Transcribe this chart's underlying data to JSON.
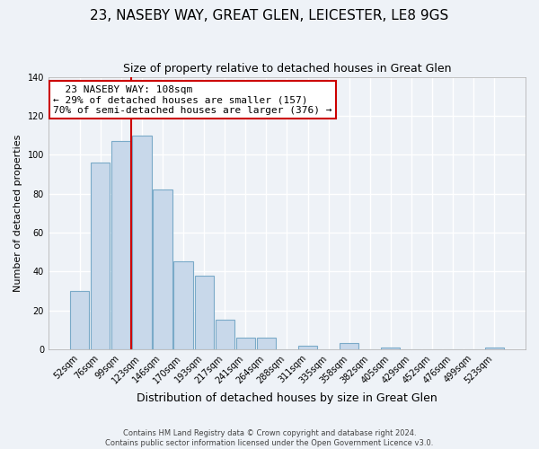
{
  "title": "23, NASEBY WAY, GREAT GLEN, LEICESTER, LE8 9GS",
  "subtitle": "Size of property relative to detached houses in Great Glen",
  "xlabel": "Distribution of detached houses by size in Great Glen",
  "ylabel": "Number of detached properties",
  "bar_labels": [
    "52sqm",
    "76sqm",
    "99sqm",
    "123sqm",
    "146sqm",
    "170sqm",
    "193sqm",
    "217sqm",
    "241sqm",
    "264sqm",
    "288sqm",
    "311sqm",
    "335sqm",
    "358sqm",
    "382sqm",
    "405sqm",
    "429sqm",
    "452sqm",
    "476sqm",
    "499sqm",
    "523sqm"
  ],
  "bar_values": [
    30,
    96,
    107,
    110,
    82,
    45,
    38,
    15,
    6,
    6,
    0,
    2,
    0,
    3,
    0,
    1,
    0,
    0,
    0,
    0,
    1
  ],
  "bar_color": "#c8d8ea",
  "bar_edgecolor": "#7aaac8",
  "vline_x": 2.5,
  "vline_color": "#cc0000",
  "ylim": [
    0,
    140
  ],
  "yticks": [
    0,
    20,
    40,
    60,
    80,
    100,
    120,
    140
  ],
  "annotation_title": "23 NASEBY WAY: 108sqm",
  "annotation_line1": "← 29% of detached houses are smaller (157)",
  "annotation_line2": "70% of semi-detached houses are larger (376) →",
  "annotation_box_color": "#ffffff",
  "annotation_box_edge": "#cc0000",
  "footer1": "Contains HM Land Registry data © Crown copyright and database right 2024.",
  "footer2": "Contains public sector information licensed under the Open Government Licence v3.0.",
  "background_color": "#eef2f7",
  "grid_color": "#ffffff",
  "title_fontsize": 11,
  "subtitle_fontsize": 9,
  "ylabel_fontsize": 8,
  "xlabel_fontsize": 9,
  "tick_fontsize": 7,
  "annot_fontsize": 8,
  "footer_fontsize": 6
}
